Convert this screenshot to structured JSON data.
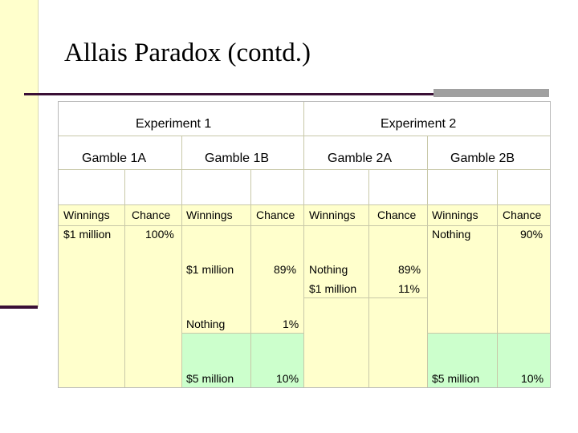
{
  "title": "Allais Paradox (contd.)",
  "table": {
    "experiments": [
      "Experiment 1",
      "Experiment 2"
    ],
    "gambles": [
      "Gamble 1A",
      "Gamble 1B",
      "Gamble 2A",
      "Gamble 2B"
    ],
    "col_headers": [
      "Winnings",
      "Chance",
      "Winnings",
      "Chance",
      "Winnings",
      "Chance",
      "Winnings",
      "Chance"
    ],
    "g1a": {
      "winnings": "$1 million",
      "chance": "100%"
    },
    "g1b": [
      {
        "winnings": "$1 million",
        "chance": "89%"
      },
      {
        "winnings": "Nothing",
        "chance": "1%"
      },
      {
        "winnings": "$5 million",
        "chance": "10%"
      }
    ],
    "g2a": [
      {
        "winnings": "Nothing",
        "chance": "89%"
      },
      {
        "winnings": "$1 million",
        "chance": "11%"
      }
    ],
    "g2b": [
      {
        "winnings": "Nothing",
        "chance": "90%"
      },
      {
        "winnings": "$5 million",
        "chance": "10%"
      }
    ]
  },
  "colors": {
    "accent": "#3a0f36",
    "cell_yellow": "#ffffcc",
    "cell_green": "#ccffcc"
  }
}
